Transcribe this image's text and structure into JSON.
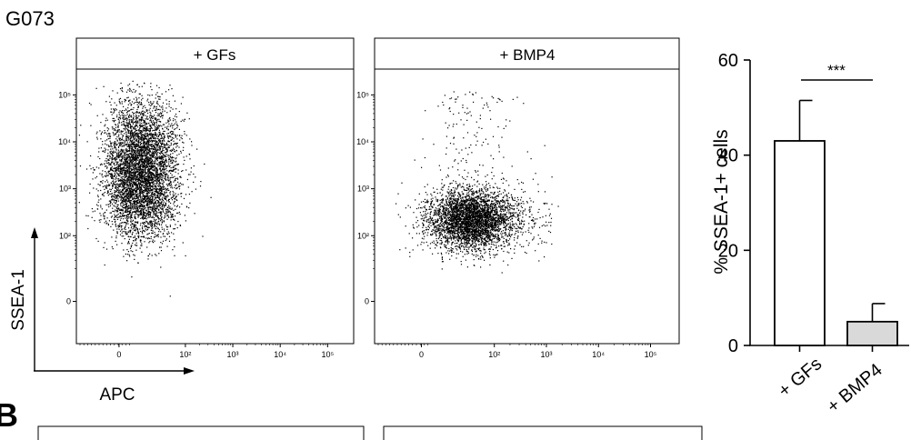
{
  "figure_label": "G073",
  "next_panel_letter": "B",
  "colors": {
    "ink": "#000000",
    "bar_fill_gfs": "#ffffff",
    "bar_fill_bmp4": "#d9d9d9",
    "dots": "#000000"
  },
  "flow_axes": {
    "x_label": "APC",
    "y_label": "SSEA-1"
  },
  "chart_data": [
    {
      "type": "scatter",
      "title": "+ GFs",
      "xlabel": "APC",
      "ylabel": "SSEA-1",
      "x_scale": "biexponential",
      "y_scale": "biexponential",
      "x_ticks": [
        "0",
        "10²",
        "10³",
        "10⁴",
        "10⁵"
      ],
      "y_ticks": [
        "10⁵",
        "10⁴",
        "10³",
        "10²",
        "0"
      ],
      "population": {
        "x_center": 20,
        "y_center": 1000,
        "y_range": [
          30,
          150000
        ],
        "shape": "tall vertical cluster"
      }
    },
    {
      "type": "scatter",
      "title": "+ BMP4",
      "xlabel": "APC",
      "ylabel": "SSEA-1",
      "x_scale": "biexponential",
      "y_scale": "biexponential",
      "x_ticks": [
        "0",
        "10²",
        "10³",
        "10⁴",
        "10⁵"
      ],
      "y_ticks": [
        "10⁵",
        "10⁴",
        "10³",
        "10²",
        "0"
      ],
      "population": {
        "x_center": 60,
        "y_center": 250,
        "y_range": [
          30,
          3000
        ],
        "shape": "compact round cluster"
      }
    },
    {
      "type": "bar",
      "categories": [
        "+ GFs",
        "+ BMP4"
      ],
      "values": [
        43,
        5
      ],
      "errors": [
        8.5,
        3.8
      ],
      "ylabel": "% SSEA-1+ cells",
      "ylim": [
        0,
        60
      ],
      "yticks": [
        0,
        20,
        40,
        60
      ],
      "significance": "***"
    }
  ]
}
